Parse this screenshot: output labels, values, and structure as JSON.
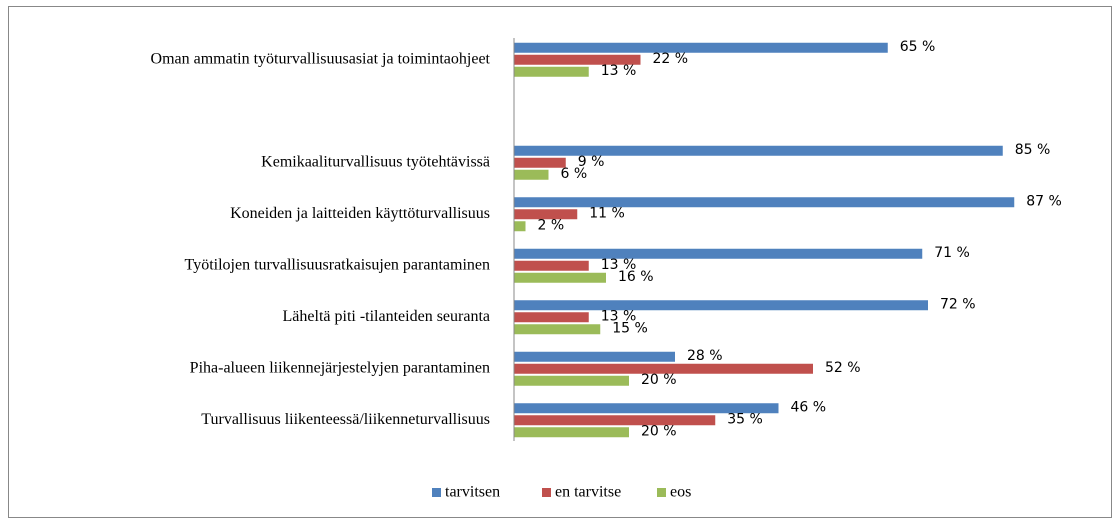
{
  "chart_data": {
    "type": "bar",
    "orientation": "horizontal",
    "categories": [
      "Oman ammatin työturvallisuusasiat ja toimintaohjeet",
      null,
      "Kemikaaliturvallisuus työtehtävissä",
      "Koneiden ja laitteiden käyttöturvallisuus",
      "Työtilojen turvallisuusratkaisujen parantaminen",
      "Läheltä piti -tilanteiden seuranta",
      "Piha-alueen liikennejärjestelyjen parantaminen",
      "Turvallisuus liikenteessä/liikenneturvallisuus"
    ],
    "series": [
      {
        "name": "tarvitsen",
        "color": "#4f81bd",
        "values": [
          65,
          null,
          85,
          87,
          71,
          72,
          28,
          46
        ],
        "value_labels": [
          "65 %",
          null,
          "85 %",
          "87 %",
          "71 %",
          "72 %",
          "28 %",
          "46 %"
        ]
      },
      {
        "name": "en tarvitse",
        "color": "#c0504d",
        "values": [
          22,
          null,
          9,
          11,
          13,
          13,
          52,
          35
        ],
        "value_labels": [
          "22 %",
          null,
          "9 %",
          "11 %",
          "13 %",
          "13 %",
          "52 %",
          "35 %"
        ]
      },
      {
        "name": "eos",
        "color": "#9bbb59",
        "values": [
          13,
          null,
          6,
          2,
          16,
          15,
          20,
          20
        ],
        "value_labels": [
          "13 %",
          null,
          "6 %",
          "2 %",
          "16 %",
          "15 %",
          "20 %",
          "20 %"
        ]
      }
    ],
    "legend": "bottom"
  }
}
